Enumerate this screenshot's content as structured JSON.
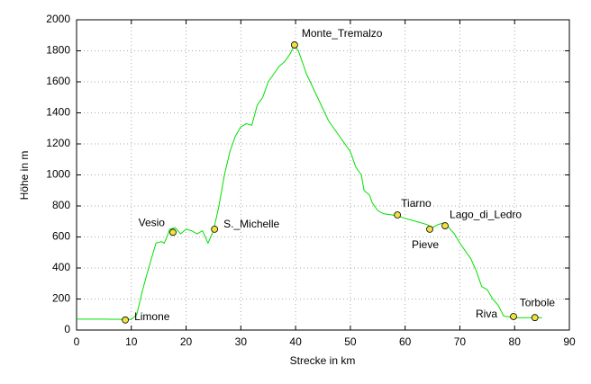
{
  "chart_data": {
    "type": "line",
    "xlabel": "Strecke in km",
    "ylabel": "Höhe in m",
    "xlim": [
      0,
      90
    ],
    "ylim": [
      0,
      2000
    ],
    "xticks": [
      0,
      10,
      20,
      30,
      40,
      50,
      60,
      70,
      80,
      90
    ],
    "yticks": [
      0,
      200,
      400,
      600,
      800,
      1000,
      1200,
      1400,
      1600,
      1800,
      2000
    ],
    "grid": true,
    "series": [
      {
        "color": "#00e000",
        "x": [
          0,
          5,
          10,
          11,
          12,
          13,
          14,
          14.5,
          15.5,
          16,
          16.5,
          17,
          18,
          19,
          20,
          21,
          22,
          23,
          24,
          24.5,
          25,
          26,
          27,
          28,
          29,
          30,
          31,
          32,
          33,
          34,
          35,
          36,
          37,
          38,
          39,
          39.8,
          40.5,
          42,
          44,
          46,
          48,
          49,
          50,
          51,
          52,
          52.5,
          53.5,
          54,
          55,
          56,
          58,
          60,
          62,
          64,
          65,
          66,
          67,
          68,
          69,
          70,
          72,
          73,
          74,
          75,
          76,
          77,
          78,
          79,
          80,
          83,
          85
        ],
        "values": [
          70,
          70,
          68,
          100,
          250,
          380,
          500,
          560,
          570,
          560,
          600,
          650,
          660,
          620,
          650,
          640,
          620,
          640,
          560,
          600,
          640,
          800,
          1000,
          1150,
          1250,
          1310,
          1330,
          1320,
          1450,
          1500,
          1600,
          1650,
          1700,
          1730,
          1780,
          1840,
          1800,
          1650,
          1500,
          1350,
          1250,
          1200,
          1150,
          1050,
          1000,
          900,
          870,
          820,
          770,
          750,
          740,
          720,
          700,
          680,
          660,
          680,
          690,
          660,
          620,
          560,
          460,
          380,
          280,
          260,
          200,
          160,
          90,
          85,
          80,
          80,
          80
        ]
      }
    ],
    "waypoint_color": "#f0e040",
    "annotations": [
      {
        "label": "Limone",
        "x": 8.9,
        "y": 65
      },
      {
        "label": "Vesio",
        "x": 17.6,
        "y": 630
      },
      {
        "label": "S._Michelle",
        "x": 25.2,
        "y": 650
      },
      {
        "label": "Monte_Tremalzo",
        "x": 39.8,
        "y": 1838
      },
      {
        "label": "Tiarno",
        "x": 58.6,
        "y": 742
      },
      {
        "label": "Pieve",
        "x": 64.5,
        "y": 650
      },
      {
        "label": "Lago_di_Ledro",
        "x": 67.3,
        "y": 672
      },
      {
        "label": "Riva",
        "x": 79.8,
        "y": 87
      },
      {
        "label": "Torbole",
        "x": 83.7,
        "y": 80
      }
    ]
  }
}
